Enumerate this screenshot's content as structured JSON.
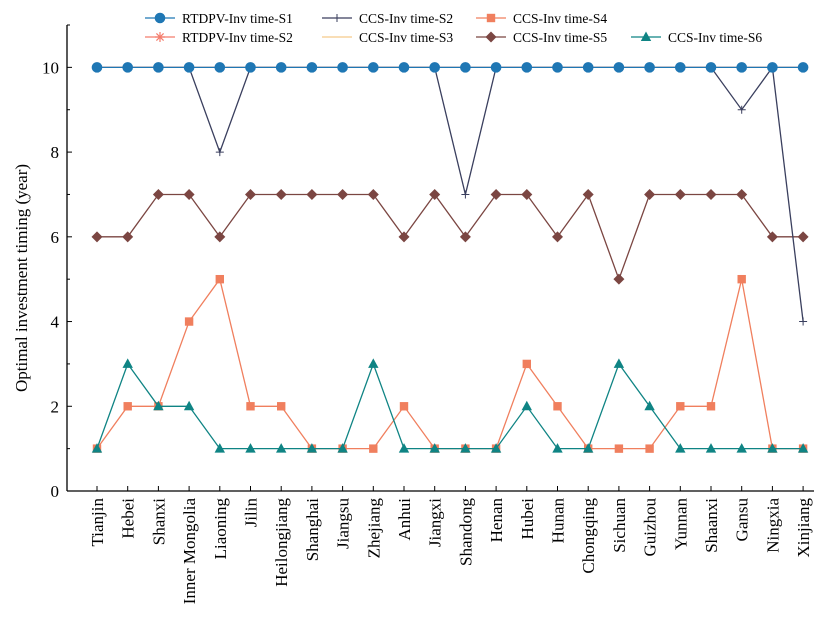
{
  "chart_data": {
    "type": "line",
    "title": "",
    "xlabel": "",
    "ylabel": "Optimal investment timing (year)",
    "ylim": [
      0,
      11
    ],
    "yticks": [
      0,
      2,
      4,
      6,
      8,
      10
    ],
    "grid": false,
    "legend_position": "top",
    "categories": [
      "Tianjin",
      "Hebei",
      "Shanxi",
      "Inner Mongolia",
      "Liaoning",
      "Jilin",
      "Heilongjiang",
      "Shanghai",
      "Jiangsu",
      "Zhejiang",
      "Anhui",
      "Jiangxi",
      "Shandong",
      "Henan",
      "Hubei",
      "Hunan",
      "Chongqing",
      "Sichuan",
      "Guizhou",
      "Yunnan",
      "Shaanxi",
      "Gansu",
      "Ningxia",
      "Xinjiang"
    ],
    "series": [
      {
        "name": "RTDPV-Inv time-S1",
        "color": "#1f77b4",
        "marker": "circle",
        "values": [
          10,
          10,
          10,
          10,
          10,
          10,
          10,
          10,
          10,
          10,
          10,
          10,
          10,
          10,
          10,
          10,
          10,
          10,
          10,
          10,
          10,
          10,
          10,
          10
        ]
      },
      {
        "name": "RTDPV-Inv time-S2",
        "color": "#f47c6c",
        "marker": "asterisk",
        "values": [
          10,
          10,
          10,
          10,
          10,
          10,
          10,
          10,
          10,
          10,
          10,
          10,
          10,
          10,
          10,
          10,
          10,
          10,
          10,
          10,
          10,
          10,
          10,
          10
        ]
      },
      {
        "name": "CCS-Inv time-S2",
        "color": "#3a3f5e",
        "marker": "plus",
        "values": [
          10,
          10,
          10,
          10,
          8,
          10,
          10,
          10,
          10,
          10,
          10,
          10,
          7,
          10,
          10,
          10,
          10,
          10,
          10,
          10,
          10,
          9,
          10,
          4
        ]
      },
      {
        "name": "CCS-Inv time-S3",
        "color": "#f5c98a",
        "marker": "none",
        "values": [
          10,
          10,
          10,
          10,
          10,
          10,
          10,
          10,
          10,
          10,
          10,
          10,
          10,
          10,
          10,
          10,
          10,
          10,
          10,
          10,
          10,
          10,
          10,
          10
        ]
      },
      {
        "name": "CCS-Inv time-S4",
        "color": "#f07f5e",
        "marker": "square",
        "values": [
          1,
          2,
          2,
          4,
          5,
          2,
          2,
          1,
          1,
          1,
          2,
          1,
          1,
          1,
          3,
          2,
          1,
          1,
          1,
          2,
          2,
          5,
          1,
          1
        ]
      },
      {
        "name": "CCS-Inv time-S5",
        "color": "#7b4642",
        "marker": "diamond",
        "values": [
          6,
          6,
          7,
          7,
          6,
          7,
          7,
          7,
          7,
          7,
          6,
          7,
          6,
          7,
          7,
          6,
          7,
          5,
          7,
          7,
          7,
          7,
          6,
          6
        ]
      },
      {
        "name": "CCS-Inv time-S6",
        "color": "#0f8484",
        "marker": "triangle",
        "values": [
          1,
          3,
          2,
          2,
          1,
          1,
          1,
          1,
          1,
          3,
          1,
          1,
          1,
          1,
          2,
          1,
          1,
          3,
          2,
          1,
          1,
          1,
          1,
          1
        ]
      }
    ]
  }
}
